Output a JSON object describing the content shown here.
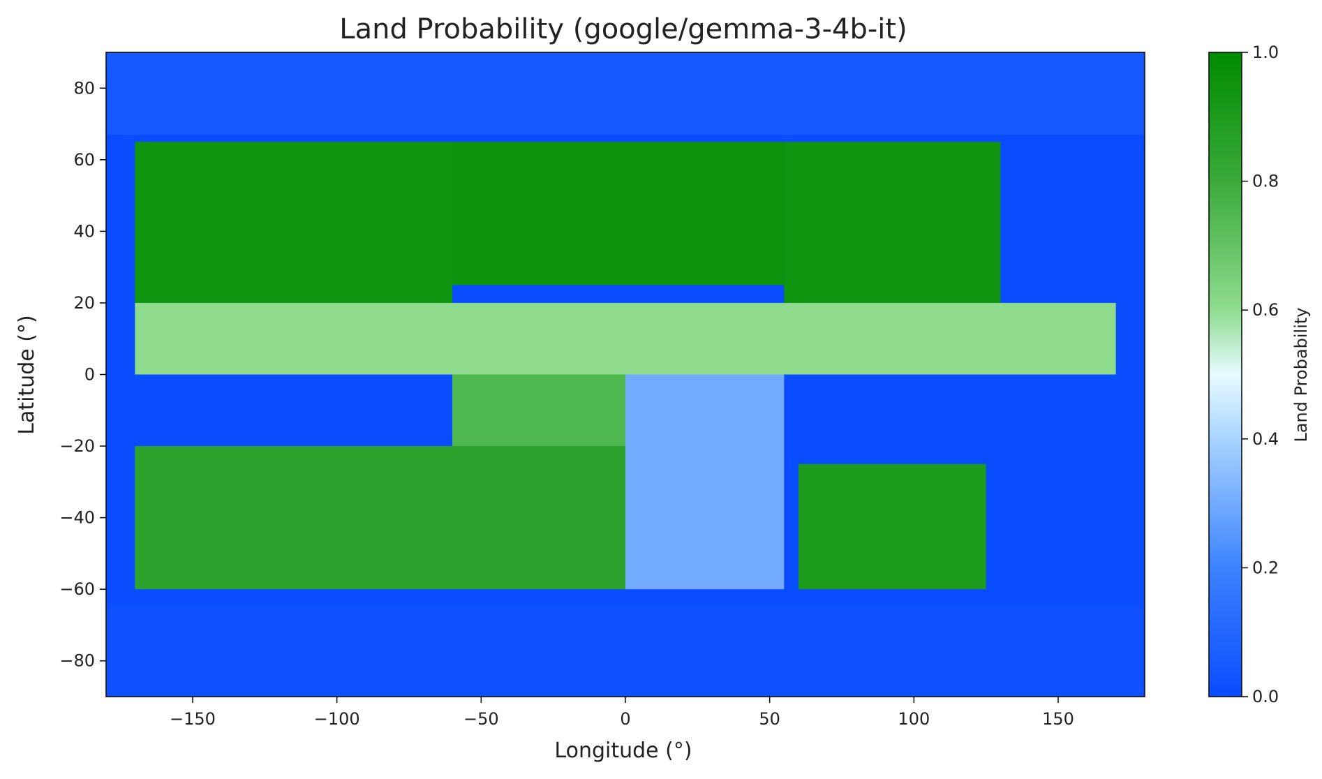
{
  "chart_data": {
    "type": "heatmap",
    "title": "Land Probability (google/gemma-3-4b-it)",
    "xlabel": "Longitude (°)",
    "ylabel": "Latitude (°)",
    "xlim": [
      -180,
      180
    ],
    "ylim": [
      -90,
      90
    ],
    "x_ticks": [
      -150,
      -100,
      -50,
      0,
      50,
      100,
      150
    ],
    "y_ticks": [
      -80,
      -60,
      -40,
      -20,
      0,
      20,
      40,
      60,
      80
    ],
    "x_tick_labels": [
      "−150",
      "−100",
      "−50",
      "0",
      "50",
      "100",
      "150"
    ],
    "y_tick_labels": [
      "−80",
      "−60",
      "−40",
      "−20",
      "0",
      "20",
      "40",
      "60",
      "80"
    ],
    "grid": false,
    "colorbar": {
      "label": "Land Probability",
      "range": [
        0.0,
        1.0
      ],
      "ticks": [
        0.0,
        0.2,
        0.4,
        0.6,
        0.8,
        1.0
      ],
      "tick_labels": [
        "0.0",
        "0.2",
        "0.4",
        "0.6",
        "0.8",
        "1.0"
      ],
      "colormap": [
        {
          "value": 0.0,
          "color": "#0a4cff"
        },
        {
          "value": 0.2,
          "color": "#3b82ff"
        },
        {
          "value": 0.4,
          "color": "#a9d4ff"
        },
        {
          "value": 0.5,
          "color": "#e6fbff"
        },
        {
          "value": 0.6,
          "color": "#8fdc8f"
        },
        {
          "value": 0.8,
          "color": "#3aaa3a"
        },
        {
          "value": 1.0,
          "color": "#008c00"
        }
      ]
    },
    "regions": [
      {
        "lon": [
          -170,
          -60
        ],
        "lat": [
          20,
          65
        ],
        "value": 0.95
      },
      {
        "lon": [
          -60,
          55
        ],
        "lat": [
          25,
          65
        ],
        "value": 0.96
      },
      {
        "lon": [
          55,
          130
        ],
        "lat": [
          20,
          65
        ],
        "value": 0.95
      },
      {
        "lon": [
          -170,
          170
        ],
        "lat": [
          0,
          20
        ],
        "value": 0.6
      },
      {
        "lon": [
          -170,
          0
        ],
        "lat": [
          -60,
          -20
        ],
        "value": 0.85
      },
      {
        "lon": [
          -60,
          0
        ],
        "lat": [
          -20,
          0
        ],
        "value": 0.75
      },
      {
        "lon": [
          60,
          125
        ],
        "lat": [
          -60,
          -25
        ],
        "value": 0.9
      },
      {
        "lon": [
          0,
          55
        ],
        "lat": [
          -60,
          0
        ],
        "value": 0.3
      },
      {
        "lon": [
          -180,
          180
        ],
        "lat": [
          -90,
          -65
        ],
        "value": 0.02
      },
      {
        "lon": [
          -180,
          180
        ],
        "lat": [
          67,
          90
        ],
        "value": 0.05
      }
    ]
  }
}
